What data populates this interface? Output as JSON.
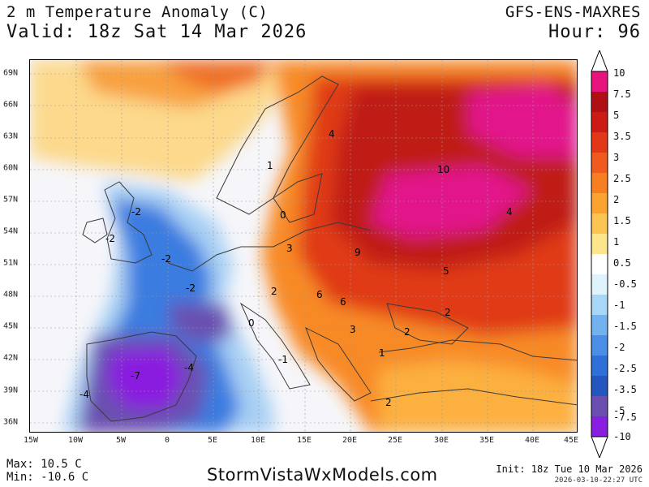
{
  "header": {
    "title": "2 m Temperature Anomaly (C)",
    "valid": "Valid: 18z Sat 14 Mar 2026",
    "model": "GFS-ENS-MAXRES",
    "hour": "Hour: 96"
  },
  "map": {
    "lat_labels": [
      "69N",
      "66N",
      "63N",
      "60N",
      "57N",
      "54N",
      "51N",
      "48N",
      "45N",
      "42N",
      "39N",
      "36N"
    ],
    "lon_labels": [
      "15W",
      "10W",
      "5W",
      "0",
      "5E",
      "10E",
      "15E",
      "20E",
      "25E",
      "30E",
      "35E",
      "40E",
      "45E"
    ],
    "contour_labels": [
      "4",
      "1",
      "0",
      "10",
      "4",
      "-2",
      "-2",
      "-2",
      "3",
      "9",
      "5",
      "-2",
      "2",
      "6",
      "6",
      "0",
      "2",
      "3",
      "2",
      "-1",
      "1",
      "-4",
      "-7",
      "-4",
      "2"
    ],
    "colors": {
      "ocean_neutral": "#f6f6fa",
      "cold_light": "#a8d0f4",
      "cold": "#3b7be0",
      "cold_strong": "#6a4fb0",
      "cold_extreme": "#8a1ee0",
      "warm_light": "#fcd98c",
      "warm": "#f88a26",
      "warm_strong": "#e03a14",
      "warm_dark": "#c01c16",
      "warm_extreme": "#e2148a"
    }
  },
  "colorbar": {
    "labels": [
      "10",
      "7.5",
      "5",
      "3.5",
      "3",
      "2.5",
      "2",
      "1.5",
      "1",
      "0.5",
      "-0.5",
      "-1",
      "-1.5",
      "-2",
      "-2.5",
      "-3.5",
      "-5",
      "-7.5",
      "-10"
    ],
    "colors": [
      "#e8147e",
      "#b01014",
      "#cc1a14",
      "#e23818",
      "#f05a1e",
      "#f87e22",
      "#fba330",
      "#fcc452",
      "#fde58c",
      "#ffffff",
      "#dff3fc",
      "#a8d6f6",
      "#72b2ee",
      "#4a8ee6",
      "#2f6fd8",
      "#2456bf",
      "#6a4fb0",
      "#8a1ee0"
    ]
  },
  "footer": {
    "max": "Max: 10.5 C",
    "min": "Min: -10.6 C",
    "brand": "StormVistaWxModels.com",
    "init": "Init: 18z Tue 10 Mar 2026",
    "stamp": "2026-03-10-22:27 UTC"
  }
}
